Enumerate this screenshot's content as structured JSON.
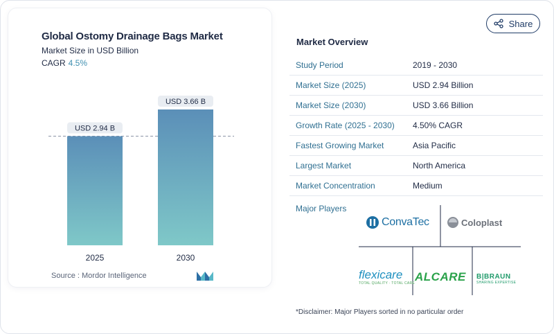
{
  "chart": {
    "title": "Global Ostomy Drainage Bags Market",
    "subtitle": "Market Size in USD Billion",
    "cagr_label": "CAGR",
    "cagr_value": "4.5%",
    "source": "Source :  Mordor Intelligence"
  },
  "chart_data": {
    "type": "bar",
    "title": "Global Ostomy Drainage Bags Market",
    "subtitle": "Market Size in USD Billion",
    "categories": [
      "2025",
      "2030"
    ],
    "values": [
      2.94,
      3.66
    ],
    "data_labels": [
      "USD 2.94 B",
      "USD 3.66 B"
    ],
    "ylim": [
      0,
      3.66
    ],
    "reference_line_value": 2.94,
    "grid": false,
    "colors": {
      "bar_top": "#5b8fb8",
      "bar_bottom": "#7fc8c8"
    }
  },
  "share": {
    "label": "Share"
  },
  "overview": {
    "title": "Market Overview",
    "rows": [
      {
        "label": "Study Period",
        "value": "2019 - 2030"
      },
      {
        "label": "Market Size (2025)",
        "value": "USD 2.94 Billion"
      },
      {
        "label": "Market Size (2030)",
        "value": "USD 3.66 Billion"
      },
      {
        "label": "Growth Rate (2025 - 2030)",
        "value": "4.50% CAGR"
      },
      {
        "label": "Fastest Growing Market",
        "value": "Asia Pacific"
      },
      {
        "label": "Largest Market",
        "value": "North America"
      },
      {
        "label": "Market Concentration",
        "value": "Medium"
      }
    ],
    "players_label": "Major Players",
    "players": [
      "ConvaTec",
      "Coloplast",
      "flexicare",
      "ALCARE",
      "B|BRAUN"
    ],
    "player_taglines": {
      "flexicare": "TOTAL QUALITY · TOTAL CARE",
      "bbraun": "SHARING EXPERTISE"
    },
    "disclaimer": "*Disclaimer: Major Players sorted in no particular order"
  }
}
